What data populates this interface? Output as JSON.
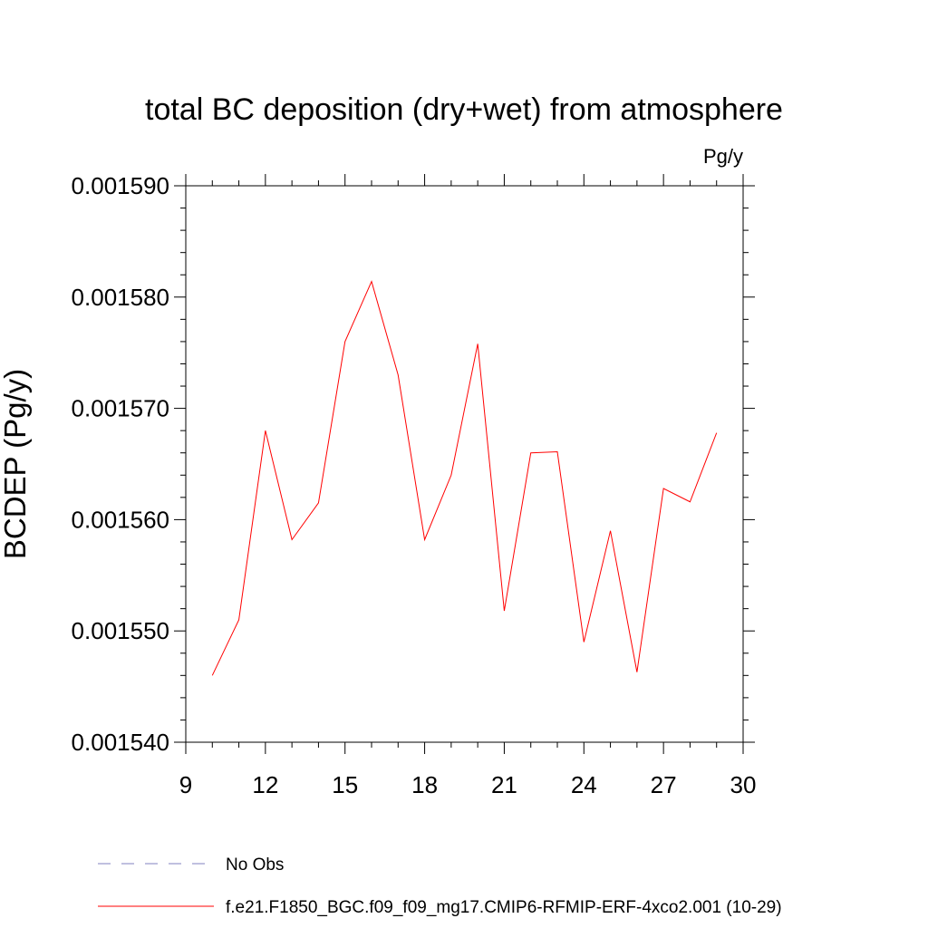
{
  "chart_data": {
    "type": "line",
    "title": "total BC deposition (dry+wet) from atmosphere",
    "units_label": "Pg/y",
    "ylabel": "BCDEP  (Pg/y)",
    "xlabel": "",
    "xlim": [
      9,
      30
    ],
    "ylim": [
      0.00154,
      0.00159
    ],
    "x_ticks": [
      9,
      12,
      15,
      18,
      21,
      24,
      27,
      30
    ],
    "x_tick_labels": [
      "9",
      "12",
      "15",
      "18",
      "21",
      "24",
      "27",
      "30"
    ],
    "y_ticks": [
      0.00154,
      0.00155,
      0.00156,
      0.00157,
      0.00158,
      0.00159
    ],
    "y_tick_labels": [
      "0.001540",
      "0.001550",
      "0.001560",
      "0.001570",
      "0.001580",
      "0.001590"
    ],
    "grid": false,
    "legend_position": "bottom",
    "series": [
      {
        "name": "f.e21.F1850_BGC.f09_f09_mg17.CMIP6-RFMIP-ERF-4xco2.001 (10-29)",
        "color": "#ff0000",
        "style": "solid",
        "x": [
          10,
          11,
          12,
          13,
          14,
          15,
          16,
          17,
          18,
          19,
          20,
          21,
          22,
          23,
          24,
          25,
          26,
          27,
          28,
          29
        ],
        "y": [
          0.001546,
          0.001551,
          0.001568,
          0.0015582,
          0.0015615,
          0.001576,
          0.0015814,
          0.001573,
          0.0015582,
          0.001564,
          0.0015758,
          0.0015518,
          0.001566,
          0.0015661,
          0.001549,
          0.001559,
          0.0015463,
          0.0015628,
          0.0015616,
          0.0015678
        ]
      }
    ],
    "legend_entries": [
      {
        "label": "No Obs",
        "color": "#8080c0",
        "style": "dashed"
      },
      {
        "label": "f.e21.F1850_BGC.f09_f09_mg17.CMIP6-RFMIP-ERF-4xco2.001 (10-29)",
        "color": "#ff0000",
        "style": "solid"
      }
    ]
  }
}
